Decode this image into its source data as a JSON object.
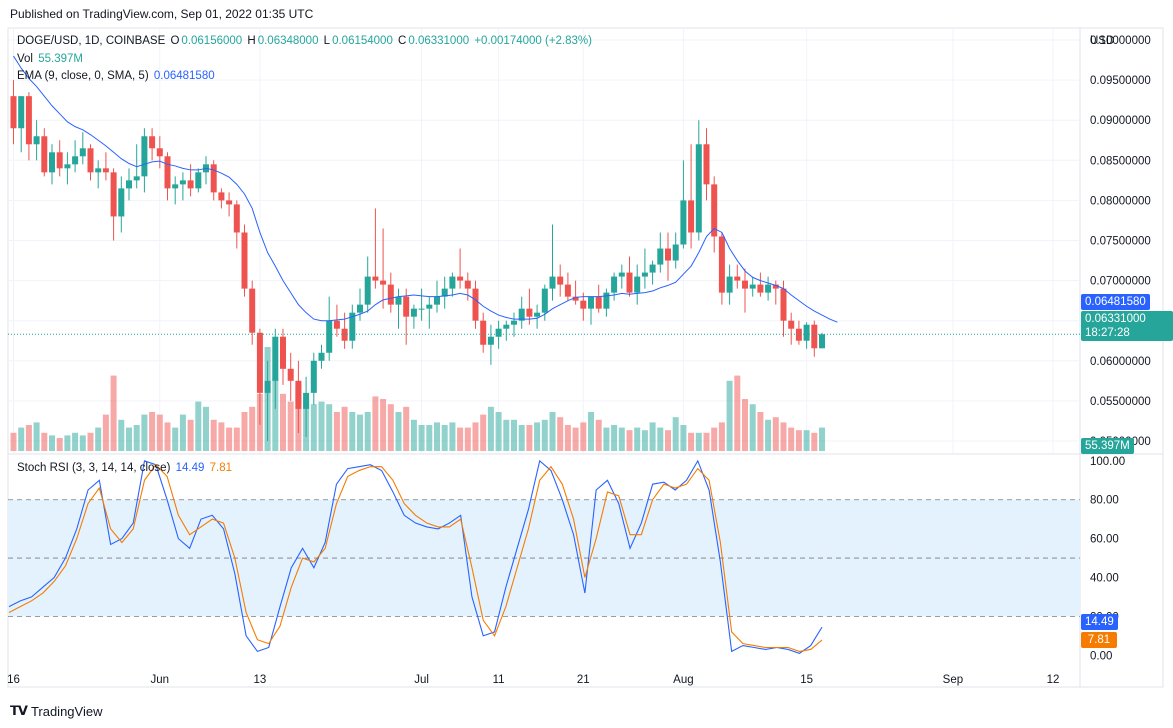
{
  "header": {
    "published": "Published on TradingView.com, Sep 01, 2022 01:35 UTC"
  },
  "legend": {
    "symbol": "DOGE/USD, 1D, COINBASE",
    "o_label": "O",
    "o": "0.06156000",
    "h_label": "H",
    "h": "0.06348000",
    "l_label": "L",
    "l": "0.06154000",
    "c_label": "C",
    "c": "0.06331000",
    "change": "+0.00174000 (+2.83%)",
    "vol_label": "Vol",
    "vol": "55.397M",
    "ema_label": "EMA (9, close, 0, SMA, 5)",
    "ema": "0.06481580"
  },
  "stoch": {
    "label": "Stoch RSI (3, 3, 14, 14, close)",
    "k": "14.49",
    "d": "7.81"
  },
  "price_axis": {
    "currency": "USD",
    "ticks": [
      "0.10000000",
      "0.09500000",
      "0.09000000",
      "0.08500000",
      "0.08000000",
      "0.07500000",
      "0.07000000",
      "0.06500000",
      "0.06000000",
      "0.05500000",
      "0.05000000"
    ]
  },
  "price_pills": {
    "ema": "0.06481580",
    "last": "0.06331000",
    "countdown": "18:27:28",
    "volume": "55.397M"
  },
  "stoch_axis": {
    "ticks": [
      "100.00",
      "80.00",
      "60.00",
      "40.00",
      "20.00",
      "0.00"
    ]
  },
  "x_axis": {
    "labels": [
      "16",
      "Jun",
      "13",
      "Jul",
      "11",
      "21",
      "Aug",
      "15",
      "Sep",
      "12"
    ]
  },
  "footer": {
    "brand": "TradingView"
  },
  "colors": {
    "up": "#26a69a",
    "down": "#ef5350",
    "ema": "#2962ff",
    "stoch_k": "#2962ff",
    "stoch_d": "#f57c00",
    "band": "#e3f2fd"
  },
  "chart_data": [
    {
      "type": "candlestick",
      "title": "DOGE/USD, 1D, COINBASE",
      "ylim": [
        0.0485,
        0.1015
      ],
      "candles": [
        [
          0.093,
          0.095,
          0.087,
          0.089
        ],
        [
          0.089,
          0.093,
          0.086,
          0.093
        ],
        [
          0.093,
          0.0935,
          0.085,
          0.087
        ],
        [
          0.087,
          0.09,
          0.085,
          0.088
        ],
        [
          0.088,
          0.089,
          0.083,
          0.0835
        ],
        [
          0.0835,
          0.087,
          0.082,
          0.086
        ],
        [
          0.086,
          0.0875,
          0.083,
          0.084
        ],
        [
          0.084,
          0.086,
          0.082,
          0.0845
        ],
        [
          0.0845,
          0.0875,
          0.0835,
          0.0855
        ],
        [
          0.0855,
          0.0885,
          0.0845,
          0.0865
        ],
        [
          0.0865,
          0.087,
          0.0825,
          0.0835
        ],
        [
          0.0835,
          0.085,
          0.0815,
          0.084
        ],
        [
          0.084,
          0.086,
          0.0825,
          0.0835
        ],
        [
          0.0835,
          0.084,
          0.075,
          0.078
        ],
        [
          0.078,
          0.083,
          0.076,
          0.0815
        ],
        [
          0.0815,
          0.084,
          0.08,
          0.0825
        ],
        [
          0.0825,
          0.087,
          0.0815,
          0.083
        ],
        [
          0.083,
          0.089,
          0.081,
          0.088
        ],
        [
          0.088,
          0.089,
          0.085,
          0.0865
        ],
        [
          0.0865,
          0.088,
          0.084,
          0.0855
        ],
        [
          0.0855,
          0.086,
          0.08,
          0.0815
        ],
        [
          0.0815,
          0.083,
          0.0795,
          0.082
        ],
        [
          0.082,
          0.0835,
          0.08,
          0.0825
        ],
        [
          0.0825,
          0.0845,
          0.0805,
          0.0815
        ],
        [
          0.0815,
          0.084,
          0.081,
          0.0835
        ],
        [
          0.0835,
          0.0855,
          0.082,
          0.0845
        ],
        [
          0.0845,
          0.085,
          0.08,
          0.081
        ],
        [
          0.081,
          0.0815,
          0.079,
          0.08
        ],
        [
          0.08,
          0.081,
          0.078,
          0.0795
        ],
        [
          0.0795,
          0.08,
          0.074,
          0.076
        ],
        [
          0.076,
          0.077,
          0.068,
          0.069
        ],
        [
          0.069,
          0.07,
          0.062,
          0.0635
        ],
        [
          0.0635,
          0.064,
          0.052,
          0.056
        ],
        [
          0.056,
          0.06,
          0.05,
          0.0575
        ],
        [
          0.0575,
          0.064,
          0.054,
          0.063
        ],
        [
          0.063,
          0.064,
          0.057,
          0.059
        ],
        [
          0.059,
          0.061,
          0.055,
          0.0575
        ],
        [
          0.0575,
          0.06,
          0.051,
          0.054
        ],
        [
          0.054,
          0.058,
          0.0505,
          0.056
        ],
        [
          0.056,
          0.061,
          0.0545,
          0.06
        ],
        [
          0.06,
          0.062,
          0.059,
          0.061
        ],
        [
          0.061,
          0.068,
          0.06,
          0.065
        ],
        [
          0.065,
          0.067,
          0.063,
          0.064
        ],
        [
          0.064,
          0.066,
          0.0615,
          0.0625
        ],
        [
          0.0625,
          0.067,
          0.0615,
          0.066
        ],
        [
          0.066,
          0.069,
          0.065,
          0.067
        ],
        [
          0.067,
          0.073,
          0.066,
          0.0705
        ],
        [
          0.0705,
          0.079,
          0.069,
          0.07
        ],
        [
          0.07,
          0.0765,
          0.0665,
          0.0695
        ],
        [
          0.0695,
          0.071,
          0.066,
          0.067
        ],
        [
          0.067,
          0.069,
          0.064,
          0.068
        ],
        [
          0.068,
          0.069,
          0.062,
          0.0655
        ],
        [
          0.0655,
          0.067,
          0.064,
          0.0665
        ],
        [
          0.0665,
          0.069,
          0.065,
          0.0665
        ],
        [
          0.0665,
          0.068,
          0.064,
          0.067
        ],
        [
          0.067,
          0.07,
          0.066,
          0.068
        ],
        [
          0.068,
          0.0705,
          0.0665,
          0.069
        ],
        [
          0.069,
          0.071,
          0.068,
          0.0705
        ],
        [
          0.0705,
          0.074,
          0.069,
          0.07
        ],
        [
          0.07,
          0.071,
          0.0675,
          0.069
        ],
        [
          0.069,
          0.07,
          0.064,
          0.065
        ],
        [
          0.065,
          0.066,
          0.061,
          0.062
        ],
        [
          0.062,
          0.0645,
          0.0595,
          0.063
        ],
        [
          0.063,
          0.065,
          0.0615,
          0.064
        ],
        [
          0.064,
          0.065,
          0.0625,
          0.0645
        ],
        [
          0.0645,
          0.066,
          0.063,
          0.065
        ],
        [
          0.065,
          0.068,
          0.064,
          0.0665
        ],
        [
          0.0665,
          0.069,
          0.0645,
          0.0655
        ],
        [
          0.0655,
          0.067,
          0.064,
          0.066
        ],
        [
          0.066,
          0.0695,
          0.065,
          0.069
        ],
        [
          0.069,
          0.077,
          0.0675,
          0.0705
        ],
        [
          0.0705,
          0.072,
          0.068,
          0.0695
        ],
        [
          0.0695,
          0.071,
          0.0675,
          0.068
        ],
        [
          0.068,
          0.07,
          0.067,
          0.0675
        ],
        [
          0.0675,
          0.0685,
          0.065,
          0.0665
        ],
        [
          0.0665,
          0.068,
          0.0645,
          0.068
        ],
        [
          0.068,
          0.0695,
          0.066,
          0.0665
        ],
        [
          0.0665,
          0.069,
          0.0655,
          0.0685
        ],
        [
          0.0685,
          0.071,
          0.0675,
          0.0705
        ],
        [
          0.0705,
          0.072,
          0.069,
          0.071
        ],
        [
          0.071,
          0.073,
          0.068,
          0.0685
        ],
        [
          0.0685,
          0.072,
          0.067,
          0.0705
        ],
        [
          0.0705,
          0.074,
          0.069,
          0.071
        ],
        [
          0.071,
          0.0725,
          0.0695,
          0.072
        ],
        [
          0.072,
          0.076,
          0.071,
          0.074
        ],
        [
          0.074,
          0.076,
          0.07,
          0.0725
        ],
        [
          0.0725,
          0.076,
          0.0715,
          0.0745
        ],
        [
          0.0745,
          0.085,
          0.074,
          0.08
        ],
        [
          0.08,
          0.087,
          0.074,
          0.076
        ],
        [
          0.076,
          0.09,
          0.075,
          0.087
        ],
        [
          0.087,
          0.089,
          0.08,
          0.082
        ],
        [
          0.082,
          0.083,
          0.0735,
          0.0755
        ],
        [
          0.0755,
          0.076,
          0.067,
          0.0685
        ],
        [
          0.0685,
          0.072,
          0.067,
          0.0705
        ],
        [
          0.0705,
          0.072,
          0.069,
          0.07
        ],
        [
          0.07,
          0.0715,
          0.066,
          0.069
        ],
        [
          0.069,
          0.0705,
          0.068,
          0.0695
        ],
        [
          0.0695,
          0.071,
          0.068,
          0.0685
        ],
        [
          0.0685,
          0.0705,
          0.0675,
          0.0695
        ],
        [
          0.0695,
          0.07,
          0.067,
          0.069
        ],
        [
          0.069,
          0.07,
          0.063,
          0.065
        ],
        [
          0.065,
          0.066,
          0.062,
          0.064
        ],
        [
          0.064,
          0.065,
          0.062,
          0.0625
        ],
        [
          0.0625,
          0.0648,
          0.0615,
          0.0645
        ],
        [
          0.0645,
          0.065,
          0.0605,
          0.06156
        ],
        [
          0.06156,
          0.06348,
          0.06154,
          0.06331
        ]
      ],
      "volume_rel": [
        0.35,
        0.45,
        0.5,
        0.55,
        0.35,
        0.3,
        0.25,
        0.3,
        0.35,
        0.3,
        0.35,
        0.45,
        0.7,
        1.45,
        0.6,
        0.45,
        0.5,
        0.7,
        0.75,
        0.7,
        0.55,
        0.45,
        0.7,
        0.6,
        0.95,
        0.85,
        0.6,
        0.55,
        0.45,
        0.45,
        0.75,
        0.85,
        1.1,
        2.0,
        1.4,
        1.1,
        0.95,
        1.25,
        0.95,
        0.9,
        0.95,
        0.9,
        0.75,
        0.85,
        0.75,
        0.7,
        0.75,
        1.05,
        1.0,
        0.9,
        0.75,
        0.85,
        0.6,
        0.5,
        0.5,
        0.55,
        0.5,
        0.55,
        0.45,
        0.45,
        0.55,
        0.7,
        0.85,
        0.75,
        0.6,
        0.6,
        0.5,
        0.5,
        0.55,
        0.6,
        0.75,
        0.65,
        0.5,
        0.45,
        0.55,
        0.75,
        0.6,
        0.45,
        0.5,
        0.45,
        0.4,
        0.45,
        0.4,
        0.55,
        0.45,
        0.4,
        0.65,
        0.5,
        0.35,
        0.35,
        0.35,
        0.45,
        0.55,
        1.35,
        1.45,
        1.0,
        0.9,
        0.75,
        0.6,
        0.65,
        0.55,
        0.45,
        0.4,
        0.4,
        0.35,
        0.45,
        0.4,
        0.35,
        0.3,
        0.2
      ],
      "ema": [
        0.098,
        0.0965,
        0.0952,
        0.0942,
        0.093,
        0.0918,
        0.0908,
        0.0898,
        0.0892,
        0.0888,
        0.0882,
        0.0875,
        0.0868,
        0.086,
        0.0852,
        0.0846,
        0.0842,
        0.0845,
        0.0848,
        0.0849,
        0.0845,
        0.0843,
        0.084,
        0.0838,
        0.0838,
        0.084,
        0.0838,
        0.0834,
        0.0829,
        0.082,
        0.0808,
        0.079,
        0.076,
        0.0735,
        0.0718,
        0.07,
        0.0685,
        0.067,
        0.066,
        0.0652,
        0.065,
        0.065,
        0.0651,
        0.0652,
        0.0655,
        0.0658,
        0.0662,
        0.067,
        0.0676,
        0.0678,
        0.068,
        0.0681,
        0.0682,
        0.0681,
        0.068,
        0.068,
        0.0681,
        0.0682,
        0.0684,
        0.0682,
        0.0676,
        0.0668,
        0.0662,
        0.0657,
        0.0654,
        0.0652,
        0.0652,
        0.0652,
        0.0653,
        0.0658,
        0.0665,
        0.067,
        0.0675,
        0.0679,
        0.068,
        0.068,
        0.068,
        0.0681,
        0.0682,
        0.0684,
        0.0683,
        0.0684,
        0.0685,
        0.0687,
        0.0691,
        0.0694,
        0.0698,
        0.0708,
        0.0718,
        0.0735,
        0.0755,
        0.0765,
        0.076,
        0.074,
        0.0725,
        0.0712,
        0.0704,
        0.07,
        0.0697,
        0.0694,
        0.069,
        0.0682,
        0.0675,
        0.0668,
        0.0662,
        0.0657,
        0.0652,
        0.0648158
      ]
    },
    {
      "type": "line",
      "title": "Stoch RSI (3, 3, 14, 14, close)",
      "ylim": [
        -5,
        103
      ],
      "series": [
        {
          "name": "K",
          "values": [
            25,
            28,
            30,
            35,
            40,
            50,
            65,
            85,
            90,
            57,
            60,
            68,
            100,
            98,
            80,
            60,
            55,
            70,
            72,
            65,
            42,
            10,
            2,
            4,
            25,
            45,
            55,
            45,
            58,
            88,
            96,
            97,
            98,
            95,
            84,
            72,
            68,
            66,
            65,
            68,
            72,
            30,
            10,
            12,
            35,
            55,
            75,
            100,
            95,
            80,
            62,
            32,
            85,
            90,
            78,
            55,
            68,
            88,
            89,
            85,
            90,
            100,
            85,
            48,
            2,
            5,
            4,
            3,
            4,
            3,
            1,
            5,
            14.49
          ]
        },
        {
          "name": "D",
          "values": [
            22,
            25,
            28,
            32,
            38,
            46,
            60,
            78,
            86,
            65,
            58,
            65,
            90,
            98,
            92,
            72,
            62,
            66,
            70,
            68,
            50,
            22,
            8,
            6,
            15,
            35,
            50,
            48,
            55,
            78,
            92,
            95,
            97,
            97,
            90,
            78,
            72,
            68,
            66,
            66,
            70,
            45,
            18,
            10,
            25,
            45,
            65,
            90,
            97,
            88,
            70,
            40,
            60,
            84,
            82,
            62,
            62,
            80,
            88,
            86,
            88,
            96,
            90,
            58,
            12,
            6,
            5,
            4,
            4,
            4,
            2,
            3,
            7.81
          ]
        }
      ]
    }
  ]
}
